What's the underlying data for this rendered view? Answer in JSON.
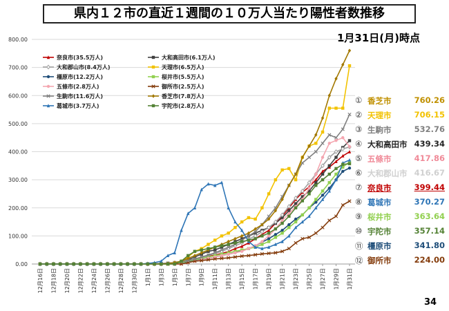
{
  "title": "県内１２市の直近１週間の１０万人当たり陽性者数推移",
  "as_of": "1月31日(月)時点",
  "page_number": "34",
  "chart_data": {
    "type": "line",
    "x": [
      "12月16日",
      "12月17日",
      "12月18日",
      "12月19日",
      "12月20日",
      "12月21日",
      "12月22日",
      "12月23日",
      "12月24日",
      "12月25日",
      "12月26日",
      "12月27日",
      "12月28日",
      "12月29日",
      "12月30日",
      "12月31日",
      "1月1日",
      "1月2日",
      "1月3日",
      "1月4日",
      "1月5日",
      "1月6日",
      "1月7日",
      "1月8日",
      "1月9日",
      "1月10日",
      "1月11日",
      "1月12日",
      "1月13日",
      "1月14日",
      "1月15日",
      "1月16日",
      "1月17日",
      "1月18日",
      "1月19日",
      "1月20日",
      "1月21日",
      "1月22日",
      "1月23日",
      "1月24日",
      "1月25日",
      "1月26日",
      "1月27日",
      "1月28日",
      "1月29日",
      "1月30日",
      "1月31日"
    ],
    "x_tick_labels": [
      "12月16日",
      "12月18日",
      "12月20日",
      "12月22日",
      "12月24日",
      "12月26日",
      "12月28日",
      "12月30日",
      "1月1日",
      "1月3日",
      "1月5日",
      "1月7日",
      "1月9日",
      "1月11日",
      "1月13日",
      "1月15日",
      "1月17日",
      "1月19日",
      "1月21日",
      "1月23日",
      "1月25日",
      "1月27日",
      "1月29日",
      "1月31日"
    ],
    "y_ticks": [
      "0.00",
      "100.00",
      "200.00",
      "300.00",
      "400.00",
      "500.00",
      "600.00",
      "700.00",
      "800.00"
    ],
    "ylim": [
      0,
      800
    ],
    "grid": true,
    "legend_position": "top-left",
    "series": [
      {
        "name": "奈良市(35.5万人)",
        "color": "#c00000",
        "marker": "triangle",
        "values": [
          0,
          0,
          0,
          0,
          0,
          0,
          0,
          0,
          0,
          0,
          0,
          0,
          0,
          0,
          0,
          0,
          0,
          1,
          1,
          3,
          5,
          8,
          12,
          17,
          22,
          27,
          32,
          38,
          44,
          55,
          63,
          75,
          90,
          105,
          120,
          145,
          170,
          200,
          230,
          255,
          275,
          300,
          330,
          345,
          365,
          385,
          399.44
        ]
      },
      {
        "name": "大和高田市(6.1万人)",
        "color": "#404040",
        "marker": "square",
        "values": [
          0,
          0,
          0,
          0,
          0,
          0,
          0,
          0,
          0,
          0,
          0,
          0,
          0,
          0,
          0,
          0,
          0,
          0,
          0,
          0,
          3,
          5,
          15,
          25,
          35,
          45,
          50,
          60,
          70,
          80,
          90,
          100,
          110,
          120,
          130,
          145,
          165,
          190,
          215,
          240,
          260,
          290,
          320,
          350,
          380,
          415,
          439.34
        ]
      },
      {
        "name": "大和郡山市(8.4万人)",
        "color": "#a0a0a0",
        "marker": "diamond-open",
        "values": [
          0,
          0,
          0,
          0,
          0,
          0,
          0,
          0,
          0,
          0,
          0,
          0,
          0,
          0,
          0,
          0,
          0,
          0,
          0,
          2,
          4,
          6,
          10,
          15,
          22,
          30,
          38,
          45,
          55,
          65,
          75,
          88,
          100,
          115,
          130,
          150,
          175,
          205,
          235,
          260,
          290,
          320,
          350,
          380,
          400,
          410,
          416.67
        ]
      },
      {
        "name": "天理市(6.5万人)",
        "color": "#f2c200",
        "marker": "square",
        "values": [
          0,
          0,
          0,
          0,
          0,
          0,
          0,
          0,
          0,
          0,
          0,
          0,
          0,
          0,
          0,
          0,
          0,
          0,
          0,
          0,
          5,
          10,
          25,
          45,
          55,
          70,
          85,
          100,
          110,
          130,
          150,
          165,
          160,
          200,
          250,
          300,
          335,
          340,
          300,
          380,
          420,
          430,
          470,
          555,
          555,
          555,
          706.15
        ]
      },
      {
        "name": "橿原市(12.2万人)",
        "color": "#1f4e79",
        "marker": "circle",
        "values": [
          0,
          0,
          0,
          0,
          0,
          0,
          0,
          0,
          0,
          0,
          0,
          0,
          0,
          0,
          0,
          0,
          0,
          0,
          0,
          1,
          3,
          5,
          8,
          12,
          16,
          20,
          25,
          30,
          35,
          40,
          48,
          55,
          65,
          78,
          90,
          105,
          120,
          140,
          160,
          175,
          200,
          220,
          245,
          270,
          300,
          330,
          341.8
        ]
      },
      {
        "name": "桜井市(5.5万人)",
        "color": "#92d050",
        "marker": "square",
        "values": [
          0,
          0,
          0,
          0,
          0,
          0,
          0,
          0,
          0,
          0,
          0,
          0,
          0,
          0,
          0,
          0,
          0,
          0,
          0,
          0,
          2,
          5,
          10,
          15,
          20,
          25,
          30,
          35,
          40,
          45,
          50,
          55,
          60,
          70,
          80,
          95,
          110,
          130,
          150,
          175,
          200,
          230,
          260,
          290,
          320,
          345,
          363.64
        ]
      },
      {
        "name": "五條市(2.8万人)",
        "color": "#f4a6b0",
        "marker": "circle",
        "values": [
          0,
          0,
          0,
          0,
          0,
          0,
          0,
          0,
          0,
          0,
          0,
          0,
          0,
          0,
          0,
          0,
          0,
          0,
          0,
          0,
          0,
          0,
          5,
          10,
          15,
          20,
          25,
          30,
          35,
          40,
          45,
          55,
          65,
          80,
          100,
          125,
          155,
          180,
          205,
          230,
          270,
          320,
          380,
          430,
          440,
          450,
          417.86
        ]
      },
      {
        "name": "御所市(2.5万人)",
        "color": "#843c0c",
        "marker": "x",
        "values": [
          0,
          0,
          0,
          0,
          0,
          0,
          0,
          0,
          0,
          0,
          0,
          0,
          0,
          0,
          0,
          0,
          0,
          0,
          0,
          0,
          0,
          0,
          5,
          10,
          12,
          15,
          18,
          20,
          22,
          25,
          28,
          30,
          33,
          36,
          38,
          40,
          45,
          55,
          75,
          90,
          95,
          110,
          130,
          155,
          170,
          210,
          224.0
        ]
      },
      {
        "name": "生駒市(11.6万人)",
        "color": "#7f7f7f",
        "marker": "x",
        "values": [
          0,
          0,
          0,
          0,
          0,
          0,
          0,
          0,
          0,
          0,
          0,
          0,
          0,
          0,
          0,
          0,
          0,
          1,
          2,
          3,
          5,
          8,
          12,
          18,
          25,
          32,
          40,
          50,
          60,
          70,
          85,
          100,
          115,
          140,
          170,
          200,
          240,
          280,
          320,
          360,
          380,
          400,
          430,
          460,
          450,
          480,
          532.76
        ]
      },
      {
        "name": "香芝市(7.8万人)",
        "color": "#a27800",
        "marker": "diamond",
        "values": [
          0,
          0,
          0,
          0,
          0,
          0,
          0,
          0,
          0,
          0,
          0,
          0,
          0,
          0,
          0,
          0,
          0,
          0,
          0,
          2,
          5,
          10,
          20,
          30,
          40,
          50,
          60,
          70,
          80,
          90,
          100,
          110,
          125,
          140,
          160,
          190,
          230,
          280,
          320,
          380,
          420,
          460,
          520,
          600,
          660,
          710,
          760.26
        ]
      },
      {
        "name": "葛城市(3.7万人)",
        "color": "#2e75b6",
        "marker": "triangle",
        "values": [
          0,
          0,
          0,
          0,
          0,
          0,
          0,
          0,
          0,
          0,
          0,
          0,
          0,
          0,
          0,
          0,
          2,
          5,
          10,
          30,
          40,
          120,
          180,
          200,
          265,
          285,
          280,
          290,
          200,
          150,
          120,
          80,
          60,
          55,
          60,
          70,
          80,
          100,
          130,
          150,
          170,
          200,
          230,
          260,
          300,
          360,
          370.27
        ]
      },
      {
        "name": "宇陀市(2.8万人)",
        "color": "#548235",
        "marker": "square",
        "values": [
          0,
          0,
          0,
          0,
          0,
          0,
          0,
          0,
          0,
          0,
          0,
          0,
          0,
          0,
          0,
          0,
          0,
          0,
          0,
          0,
          0,
          10,
          30,
          45,
          50,
          55,
          60,
          65,
          70,
          75,
          80,
          85,
          90,
          100,
          110,
          125,
          145,
          170,
          200,
          225,
          250,
          280,
          300,
          320,
          340,
          355,
          357.14
        ]
      }
    ]
  },
  "ranking": [
    {
      "rank": "①",
      "name": "香芝市",
      "value": "760.26",
      "color": "#c09000"
    },
    {
      "rank": "②",
      "name": "天理市",
      "value": "706.15",
      "color": "#f2c200"
    },
    {
      "rank": "③",
      "name": "生駒市",
      "value": "532.76",
      "color": "#7f7f7f"
    },
    {
      "rank": "④",
      "name": "大和高田市",
      "value": "439.34",
      "color": "#262626"
    },
    {
      "rank": "⑤",
      "name": "五條市",
      "value": "417.86",
      "color": "#f08a98"
    },
    {
      "rank": "⑥",
      "name": "大和郡山市",
      "value": "416.67",
      "color": "#d0d0d0"
    },
    {
      "rank": "⑦",
      "name": "奈良市",
      "value": "399.44",
      "color": "#c00000"
    },
    {
      "rank": "⑧",
      "name": "葛城市",
      "value": "370.27",
      "color": "#2e75b6"
    },
    {
      "rank": "⑨",
      "name": "桜井市",
      "value": "363.64",
      "color": "#92d050"
    },
    {
      "rank": "⑩",
      "name": "宇陀市",
      "value": "357.14",
      "color": "#548235"
    },
    {
      "rank": "⑪",
      "name": "橿原市",
      "value": "341.80",
      "color": "#1f4e79"
    },
    {
      "rank": "⑫",
      "name": "御所市",
      "value": "224.00",
      "color": "#843c0c"
    }
  ]
}
